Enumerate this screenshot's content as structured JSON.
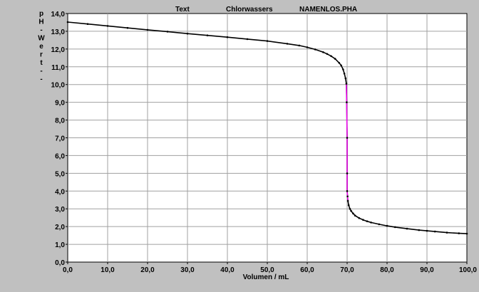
{
  "header": {
    "text_label": "Text",
    "sample_name": "Chlorwassers",
    "file_name": "NAMENLOS.PHA"
  },
  "chart_data": {
    "type": "line",
    "title": "",
    "xlabel": "Volumen / mL",
    "ylabel": "pH-Wert--",
    "xlim": [
      0,
      100
    ],
    "ylim": [
      0,
      14
    ],
    "x_ticks": [
      "0,0",
      "10,0",
      "20,0",
      "30,0",
      "40,0",
      "50,0",
      "60,0",
      "70,0",
      "80,0",
      "90,0",
      "100,0"
    ],
    "y_ticks": [
      "0,0",
      "1,0",
      "2,0",
      "3,0",
      "4,0",
      "5,0",
      "6,0",
      "7,0",
      "8,0",
      "9,0",
      "10,0",
      "11,0",
      "12,0",
      "13,0",
      "14,0"
    ],
    "grid": true,
    "colors": {
      "background": "#c0c0c0",
      "plot": "#ffffff",
      "grid": "#a0a0a0",
      "curve": "#000000",
      "equivalence_segment": "#ff00ff"
    },
    "series": [
      {
        "x": [
          0,
          5,
          10,
          15,
          20,
          25,
          30,
          35,
          40,
          45,
          50,
          55,
          58,
          60,
          62,
          64,
          65,
          66,
          67,
          68,
          68.5,
          69,
          69.3,
          69.6,
          69.8,
          69.9,
          70.0,
          70.0,
          70.0,
          70.1,
          70.2,
          70.4,
          70.7,
          71,
          71.5,
          72,
          73,
          74,
          75,
          76,
          78,
          80,
          82,
          85,
          88,
          90,
          92,
          95,
          98,
          100
        ],
        "y": [
          13.52,
          13.41,
          13.3,
          13.19,
          13.08,
          12.98,
          12.87,
          12.77,
          12.67,
          12.56,
          12.45,
          12.3,
          12.2,
          12.1,
          11.98,
          11.82,
          11.72,
          11.6,
          11.45,
          11.22,
          11.08,
          10.85,
          10.62,
          10.35,
          10.05,
          9.0,
          7.0,
          5.0,
          4.0,
          3.7,
          3.45,
          3.2,
          3.0,
          2.88,
          2.74,
          2.62,
          2.48,
          2.38,
          2.3,
          2.23,
          2.13,
          2.04,
          1.97,
          1.88,
          1.8,
          1.76,
          1.72,
          1.66,
          1.62,
          1.6
        ]
      }
    ]
  }
}
